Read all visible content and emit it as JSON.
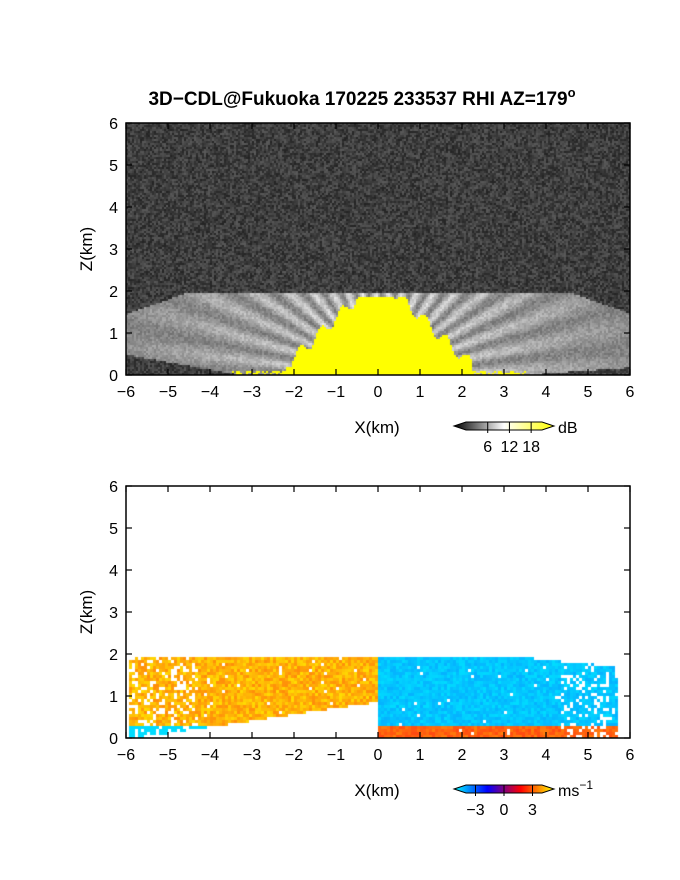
{
  "title": {
    "main": "3D−CDL@Fukuoka 170225 233537 RHI AZ=179",
    "superscript": "o"
  },
  "chart_data": [
    {
      "type": "heatmap",
      "name": "reflectivity",
      "xlabel": "X(km)",
      "ylabel": "Z(km)",
      "xlim": [
        -6,
        6
      ],
      "ylim": [
        0,
        6
      ],
      "x_ticks": [
        "−6",
        "−5",
        "−4",
        "−3",
        "−2",
        "−1",
        "0",
        "1",
        "2",
        "3",
        "4",
        "5",
        "6"
      ],
      "y_ticks": [
        "0",
        "1",
        "2",
        "3",
        "4",
        "5",
        "6"
      ],
      "colorbar": {
        "unit": "dB",
        "ticks": [
          "6",
          "12",
          "18"
        ],
        "range": [
          0,
          21
        ],
        "colors": [
          "#000000",
          "#ffffff",
          "#ffff00"
        ]
      },
      "field": {
        "echo_top_km": 2.0,
        "cone_half_width_km": 2.0,
        "saturated_value_db": 18
      }
    },
    {
      "type": "heatmap",
      "name": "doppler_velocity",
      "xlabel": "X(km)",
      "ylabel": "Z(km)",
      "xlim": [
        -6,
        6
      ],
      "ylim": [
        0,
        6
      ],
      "x_ticks": [
        "−6",
        "−5",
        "−4",
        "−3",
        "−2",
        "−1",
        "0",
        "1",
        "2",
        "3",
        "4",
        "5",
        "6"
      ],
      "y_ticks": [
        "0",
        "1",
        "2",
        "3",
        "4",
        "5",
        "6"
      ],
      "colorbar": {
        "unit": "ms",
        "unit_exponent": "−1",
        "ticks": [
          "−3",
          "0",
          "3"
        ],
        "range": [
          -4,
          4
        ],
        "colors": [
          "#00ffff",
          "#0000ff",
          "#ff0000",
          "#ffff00"
        ]
      },
      "field": {
        "left_side_sign": "positive",
        "right_side_sign": "negative",
        "echo_top_km": 2.0
      }
    }
  ]
}
